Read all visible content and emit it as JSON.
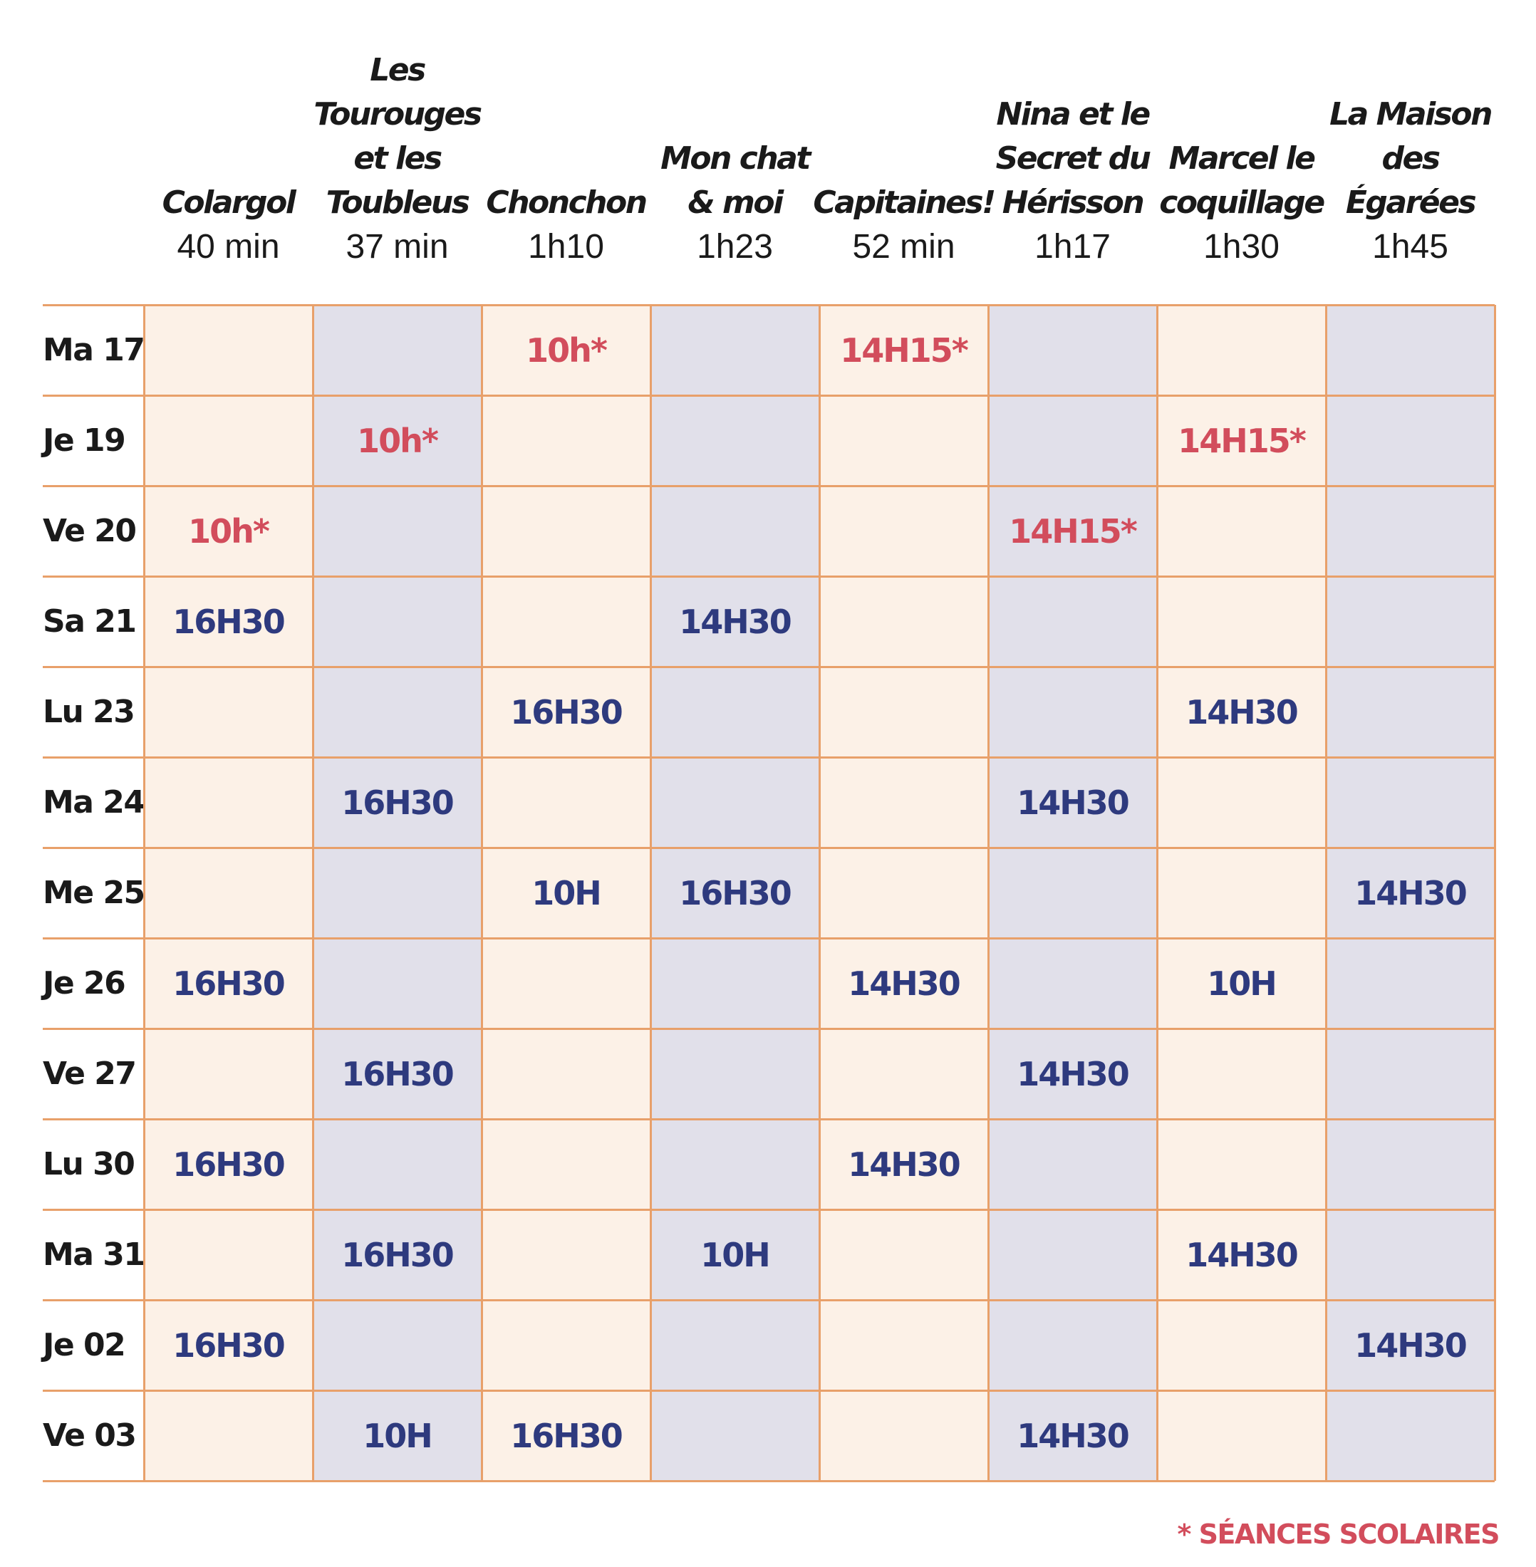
{
  "films": [
    {
      "title_lines": [
        "Colargol"
      ],
      "duration": "40 min"
    },
    {
      "title_lines": [
        "Les",
        "Tourouges",
        "et les",
        "Toubleus"
      ],
      "duration": "37 min"
    },
    {
      "title_lines": [
        "Chonchon"
      ],
      "duration": "1h10"
    },
    {
      "title_lines": [
        "Mon chat",
        "& moi"
      ],
      "duration": "1h23"
    },
    {
      "title_lines": [
        "Capitaines!"
      ],
      "duration": "52 min"
    },
    {
      "title_lines": [
        "Nina et le",
        "Secret du",
        "Hérisson"
      ],
      "duration": "1h17"
    },
    {
      "title_lines": [
        "Marcel le",
        "coquillage"
      ],
      "duration": "1h30"
    },
    {
      "title_lines": [
        "La Maison",
        "des",
        "Égarées"
      ],
      "duration": "1h45"
    }
  ],
  "days": [
    "Ma 17",
    "Je 19",
    "Ve 20",
    "Sa 21",
    "Lu 23",
    "Ma 24",
    "Me 25",
    "Je 26",
    "Ve 27",
    "Lu 30",
    "Ma 31",
    "Je 02",
    "Ve 03"
  ],
  "schedule": [
    [
      "",
      "",
      "10h*",
      "",
      "14H15*",
      "",
      "",
      ""
    ],
    [
      "",
      "10h*",
      "",
      "",
      "",
      "",
      "14H15*",
      ""
    ],
    [
      "10h*",
      "",
      "",
      "",
      "",
      "14H15*",
      "",
      ""
    ],
    [
      "16H30",
      "",
      "",
      "14H30",
      "",
      "",
      "",
      ""
    ],
    [
      "",
      "",
      "16H30",
      "",
      "",
      "",
      "14H30",
      ""
    ],
    [
      "",
      "16H30",
      "",
      "",
      "",
      "14H30",
      "",
      ""
    ],
    [
      "",
      "",
      "10H",
      "16H30",
      "",
      "",
      "",
      "14H30"
    ],
    [
      "16H30",
      "",
      "",
      "",
      "14H30",
      "",
      "10H",
      ""
    ],
    [
      "",
      "16H30",
      "",
      "",
      "",
      "14H30",
      "",
      ""
    ],
    [
      "16H30",
      "",
      "",
      "",
      "14H30",
      "",
      "",
      ""
    ],
    [
      "",
      "16H30",
      "",
      "10H",
      "",
      "",
      "14H30",
      ""
    ],
    [
      "16H30",
      "",
      "",
      "",
      "",
      "",
      "",
      "14H30"
    ],
    [
      "",
      "10H",
      "16H30",
      "",
      "",
      "14H30",
      "",
      ""
    ]
  ],
  "legend": "* SÉANCES SCOLAIRES",
  "colors": {
    "column_odd": "#fcf1e7",
    "column_even": "#e1e0ea",
    "grid_line": "#e8a06a",
    "public_screening": "#2e3a7e",
    "school_screening": "#d24d5c",
    "text": "#1a1a1a"
  }
}
